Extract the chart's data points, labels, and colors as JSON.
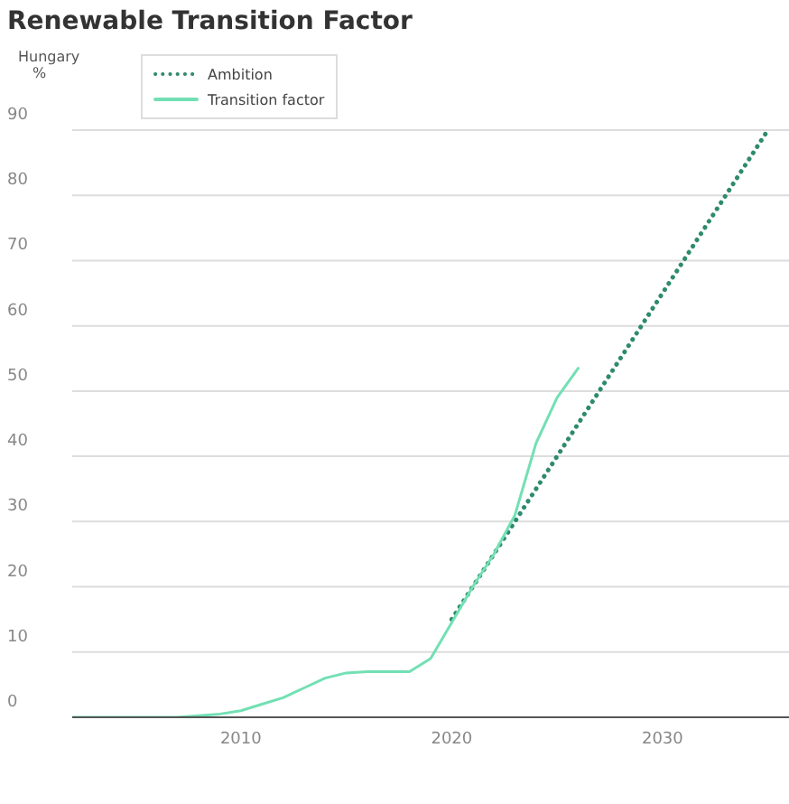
{
  "chart_data": {
    "type": "line",
    "title": "Renewable Transition Factor",
    "subtitle": "Hungary",
    "ylabel": "%",
    "xlim": [
      2002,
      2036
    ],
    "xticks": [
      2010,
      2020,
      2030
    ],
    "ylim": [
      0,
      90
    ],
    "yticks": [
      0,
      10,
      20,
      30,
      40,
      50,
      60,
      70,
      80,
      90
    ],
    "grid": "y",
    "legend": "top left",
    "marker": "none",
    "series": [
      {
        "name": "Ambition",
        "color": "#2f8a6e",
        "line_style": "dotted",
        "x": [
          2020,
          2025,
          2030,
          2035
        ],
        "values": [
          15,
          40,
          65,
          90
        ]
      },
      {
        "name": "Transition factor",
        "color": "#72e0b4",
        "line_style": "solid",
        "x": [
          2002,
          2007,
          2009,
          2010,
          2011,
          2012,
          2013,
          2014,
          2015,
          2016,
          2017,
          2018,
          2019,
          2020,
          2021,
          2022,
          2023,
          2024,
          2025,
          2026
        ],
        "values": [
          0,
          0,
          0.5,
          1,
          2,
          3,
          4.5,
          6,
          6.8,
          7,
          7,
          7,
          9,
          14.5,
          20,
          25,
          31,
          42,
          49,
          53.5
        ]
      }
    ]
  }
}
